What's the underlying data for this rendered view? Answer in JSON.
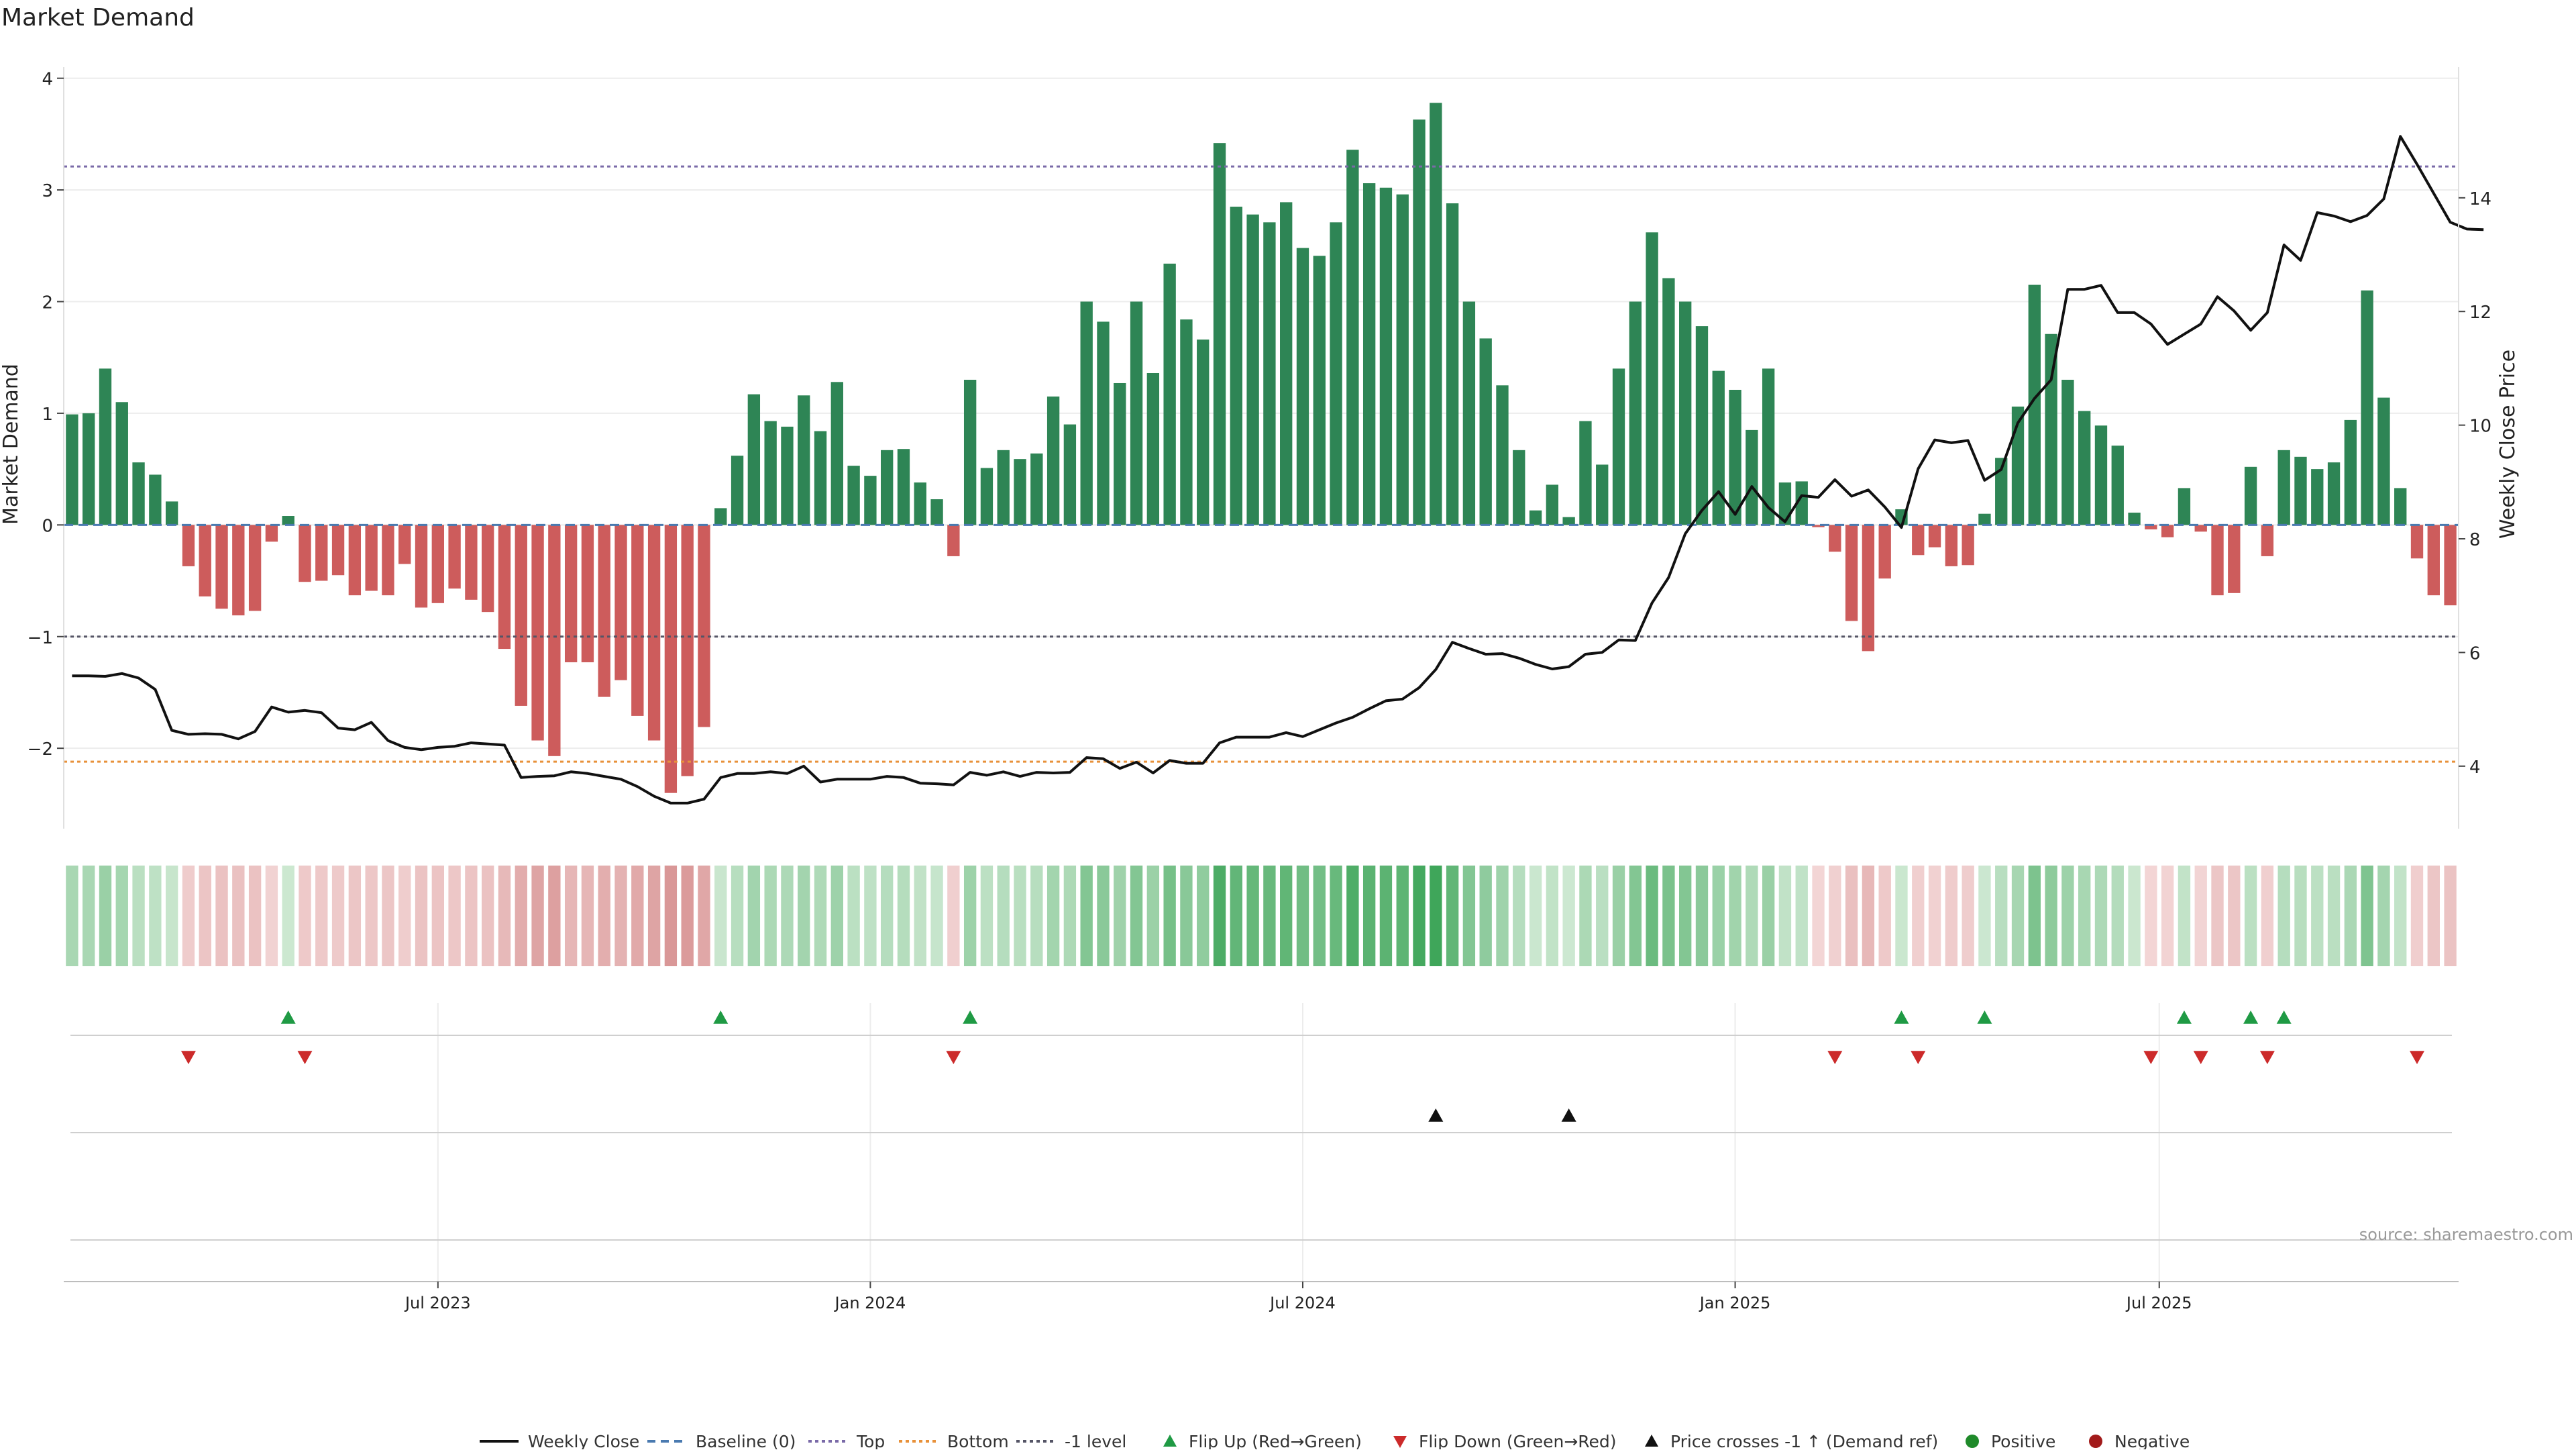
{
  "chart_data": {
    "type": "bar",
    "title": "Market Demand",
    "ylabel": "Market Demand",
    "y2label": "Weekly Close Price",
    "ylim": [
      -2.72,
      4.1
    ],
    "y2lim": [
      2.9,
      16.3
    ],
    "y_ticks": [
      4,
      3,
      2,
      1,
      0,
      -1,
      -2
    ],
    "y2_ticks": [
      14,
      12,
      10,
      8,
      6,
      4
    ],
    "x_tick_labels": [
      "Jul 2023",
      "Jan 2024",
      "Jul 2024",
      "Jan 2025",
      "Jul 2025"
    ],
    "x_tick_weeks": [
      22,
      48,
      74,
      100,
      125.5
    ],
    "reference_lines": {
      "top": 3.21,
      "bottom": -2.12,
      "minus_one_level": -1,
      "baseline": 0
    },
    "colors": {
      "positive_bar": "#2e8555",
      "negative_bar": "#cd5c5c",
      "price_line": "#111111",
      "top_line": "#7a6aa8",
      "bottom_line": "#e8913a",
      "minus_one_line": "#555566",
      "baseline": "#4a7ab0",
      "flip_up": "#1f9a44",
      "flip_down": "#cc2a2a",
      "cross_marker": "#111111"
    },
    "demand": [
      0.99,
      1.0,
      1.4,
      1.1,
      0.56,
      0.45,
      0.21,
      -0.37,
      -0.64,
      -0.75,
      -0.81,
      -0.77,
      -0.15,
      0.08,
      -0.51,
      -0.5,
      -0.45,
      -0.63,
      -0.59,
      -0.63,
      -0.35,
      -0.74,
      -0.7,
      -0.57,
      -0.67,
      -0.78,
      -1.11,
      -1.62,
      -1.93,
      -2.07,
      -1.23,
      -1.23,
      -1.54,
      -1.39,
      -1.71,
      -1.93,
      -2.4,
      -2.25,
      -1.81,
      0.15,
      0.62,
      1.17,
      0.93,
      0.88,
      1.16,
      0.84,
      1.28,
      0.53,
      0.44,
      0.67,
      0.68,
      0.38,
      0.23,
      -0.28,
      1.3,
      0.51,
      0.67,
      0.59,
      0.64,
      1.15,
      0.9,
      2.0,
      1.82,
      1.27,
      2.0,
      1.36,
      2.34,
      1.84,
      1.66,
      3.42,
      2.85,
      2.78,
      2.71,
      2.89,
      2.48,
      2.41,
      2.71,
      3.36,
      3.06,
      3.02,
      2.96,
      3.63,
      3.78,
      2.88,
      2.0,
      1.67,
      1.25,
      0.67,
      0.13,
      0.36,
      0.07,
      0.93,
      0.54,
      1.4,
      2.0,
      2.62,
      2.21,
      2.0,
      1.78,
      1.38,
      1.21,
      0.85,
      1.4,
      0.38,
      0.39,
      -0.02,
      -0.24,
      -0.86,
      -1.13,
      -0.48,
      0.14,
      -0.27,
      -0.2,
      -0.37,
      -0.36,
      0.1,
      0.6,
      1.06,
      2.15,
      1.71,
      1.3,
      1.02,
      0.89,
      0.71,
      0.11,
      -0.04,
      -0.11,
      0.33,
      -0.06,
      -0.63,
      -0.61,
      0.52,
      -0.28,
      0.67,
      0.61,
      0.5,
      0.56,
      0.94,
      2.1,
      1.14,
      0.33,
      -0.3,
      -0.63,
      -0.72
    ],
    "price": [
      5.59,
      5.59,
      5.58,
      5.63,
      5.55,
      5.35,
      4.63,
      4.56,
      4.57,
      4.56,
      4.48,
      4.61,
      5.04,
      4.95,
      4.98,
      4.94,
      4.67,
      4.64,
      4.77,
      4.45,
      4.33,
      4.29,
      4.33,
      4.35,
      4.41,
      4.39,
      4.37,
      3.8,
      3.82,
      3.83,
      3.9,
      3.87,
      3.82,
      3.77,
      3.64,
      3.47,
      3.35,
      3.35,
      3.42,
      3.8,
      3.87,
      3.87,
      3.9,
      3.87,
      4.0,
      3.72,
      3.77,
      3.77,
      3.77,
      3.82,
      3.8,
      3.7,
      3.69,
      3.67,
      3.89,
      3.84,
      3.9,
      3.82,
      3.89,
      3.88,
      3.89,
      4.15,
      4.13,
      3.96,
      4.07,
      3.88,
      4.1,
      4.05,
      4.05,
      4.41,
      4.51,
      4.51,
      4.51,
      4.59,
      4.52,
      4.64,
      4.76,
      4.86,
      5.01,
      5.15,
      5.18,
      5.38,
      5.7,
      6.18,
      6.07,
      5.97,
      5.98,
      5.9,
      5.79,
      5.71,
      5.75,
      5.97,
      6.0,
      6.22,
      6.21,
      6.87,
      7.32,
      8.09,
      8.5,
      8.83,
      8.43,
      8.92,
      8.55,
      8.3,
      8.76,
      8.73,
      9.04,
      8.75,
      8.86,
      8.56,
      8.2,
      9.23,
      9.74,
      9.69,
      9.73,
      9.03,
      9.22,
      10.04,
      10.47,
      10.8,
      12.39,
      12.39,
      12.46,
      11.98,
      11.98,
      11.78,
      11.42,
      11.6,
      11.78,
      12.26,
      12.01,
      11.67,
      11.98,
      13.17,
      12.9,
      13.74,
      13.68,
      13.58,
      13.69,
      13.98,
      15.08,
      14.59,
      14.08,
      13.57,
      13.45,
      13.44
    ],
    "flip_up_weeks": [
      13,
      39,
      54,
      110,
      115,
      127,
      131,
      133
    ],
    "flip_down_weeks": [
      7,
      14,
      53,
      106,
      111,
      125,
      128,
      132,
      141
    ],
    "price_cross_weeks": [
      82,
      90
    ],
    "legend": [
      "Weekly Close",
      "Baseline (0)",
      "Top",
      "Bottom",
      "-1 level",
      "Flip Up (Red→Green)",
      "Flip Down (Green→Red)",
      "Price crosses -1 ↑ (Demand ref)",
      "Positive",
      "Negative"
    ],
    "legend_placement": "bottom-center",
    "source": "source: sharemaestro.com"
  }
}
